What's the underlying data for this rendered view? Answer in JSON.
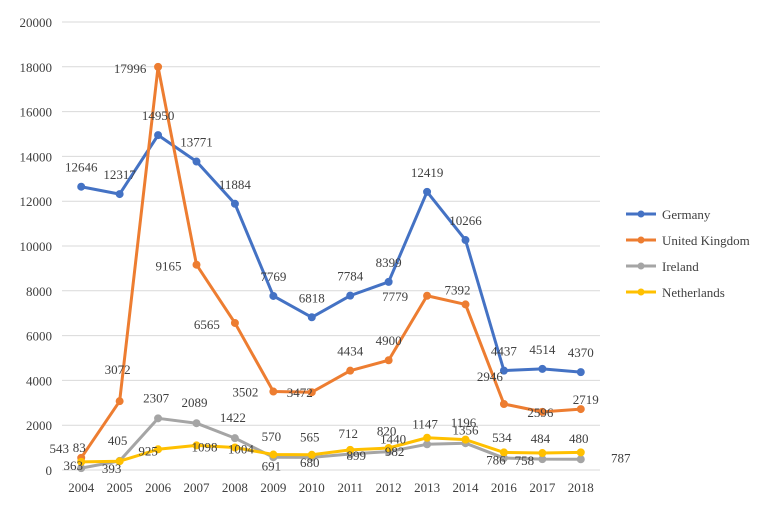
{
  "chart_data": {
    "type": "line",
    "title": "",
    "xlabel": "",
    "ylabel": "",
    "categories": [
      "2004",
      "2005",
      "2006",
      "2007",
      "2008",
      "2009",
      "2010",
      "2011",
      "2012",
      "2013",
      "2014",
      "2016",
      "2017",
      "2018"
    ],
    "ylim": [
      0,
      20000
    ],
    "yticks": [
      0,
      2000,
      4000,
      6000,
      8000,
      10000,
      12000,
      14000,
      16000,
      18000,
      20000
    ],
    "ytick_labels": [
      "0",
      "2000",
      "4000",
      "6000",
      "8000",
      "10000",
      "12000",
      "14000",
      "16000",
      "18000",
      "20000"
    ],
    "grid": true,
    "legend_position": "right",
    "series": [
      {
        "name": "Germany",
        "color": "#4472c4",
        "values": [
          12646,
          12317,
          14950,
          13771,
          11884,
          7769,
          6818,
          7784,
          8399,
          12419,
          10266,
          4437,
          4514,
          4370
        ],
        "labels": [
          "12646",
          "12317",
          "14950",
          "13771",
          "11884",
          "7769",
          "6818",
          "7784",
          "8399",
          "12419",
          "10266",
          "4437",
          "4514",
          "4370"
        ]
      },
      {
        "name": "United Kingdom",
        "color": "#ed7d31",
        "values": [
          543,
          3072,
          17996,
          9165,
          6565,
          3502,
          3472,
          4434,
          4900,
          7779,
          7392,
          2946,
          2596,
          2719
        ],
        "labels": [
          "543",
          "3072",
          "17996",
          "9165",
          "6565",
          "3502",
          "3472",
          "4434",
          "4900",
          "7779",
          "7392",
          "2946",
          "2596",
          "2719"
        ]
      },
      {
        "name": "Ireland",
        "color": "#a5a5a5",
        "values": [
          83,
          405,
          2307,
          2089,
          1422,
          570,
          565,
          712,
          820,
          1147,
          1196,
          534,
          484,
          480
        ],
        "labels": [
          "83",
          "405",
          "2307",
          "2089",
          "1422",
          "570",
          "565",
          "712",
          "820",
          "1147",
          "1196",
          "534",
          "484",
          "480"
        ]
      },
      {
        "name": "Netherlands",
        "color": "#ffc000",
        "values": [
          363,
          393,
          925,
          1098,
          1004,
          691,
          680,
          899,
          982,
          1440,
          1356,
          786,
          758,
          787
        ],
        "labels": [
          "363",
          "393",
          "925",
          "1098",
          "1004",
          "691",
          "680",
          "899",
          "982",
          "1440",
          "1356",
          "786",
          "758",
          "787"
        ]
      }
    ]
  }
}
